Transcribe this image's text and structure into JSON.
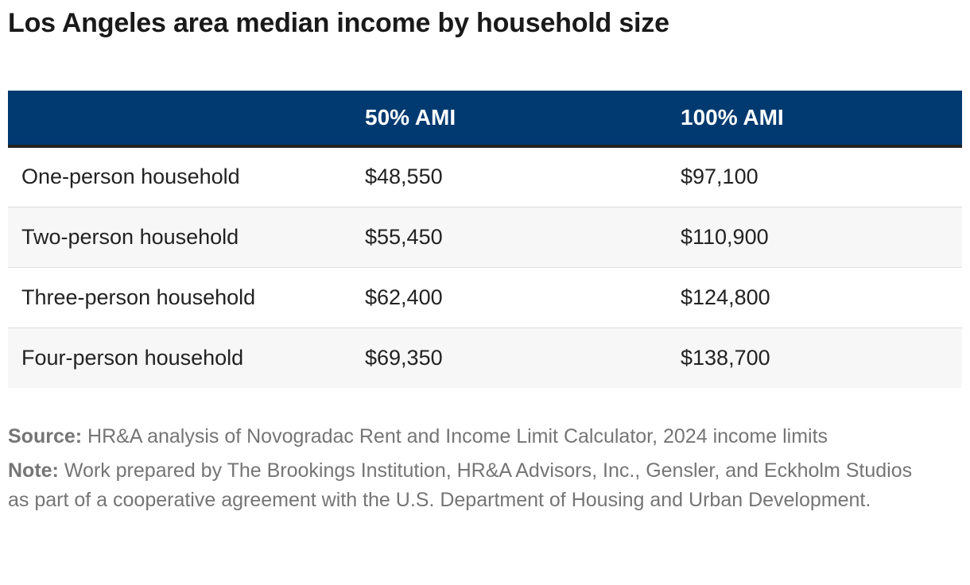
{
  "title": "Los Angeles area median income by household size",
  "table": {
    "headers": [
      "",
      "50% AMI",
      "100% AMI"
    ],
    "rows": [
      {
        "label": "One-person household",
        "ami50": "$48,550",
        "ami100": "$97,100"
      },
      {
        "label": "Two-person household",
        "ami50": "$55,450",
        "ami100": "$110,900"
      },
      {
        "label": "Three-person household",
        "ami50": "$62,400",
        "ami100": "$124,800"
      },
      {
        "label": "Four-person household",
        "ami50": "$69,350",
        "ami100": "$138,700"
      }
    ]
  },
  "source": {
    "label": "Source:",
    "text": " HR&A analysis of Novogradac Rent and Income Limit Calculator, 2024 income limits"
  },
  "note": {
    "label": "Note:",
    "text": " Work prepared by The Brookings Institution, HR&A Advisors, Inc., Gensler, and Eckholm Studios as part of a cooperative agreement with the U.S. Department of Housing and Urban Development."
  },
  "colors": {
    "header_bg": "#003a70",
    "header_text": "#ffffff",
    "stripe": "#f7f7f7",
    "note_text": "#757575"
  },
  "chart_data": {
    "type": "table",
    "title": "Los Angeles area median income by household size",
    "columns": [
      "",
      "50% AMI",
      "100% AMI"
    ],
    "categories": [
      "One-person household",
      "Two-person household",
      "Three-person household",
      "Four-person household"
    ],
    "series": [
      {
        "name": "50% AMI",
        "values": [
          48550,
          55450,
          62400,
          69350
        ]
      },
      {
        "name": "100% AMI",
        "values": [
          97100,
          110900,
          124800,
          138700
        ]
      }
    ]
  }
}
